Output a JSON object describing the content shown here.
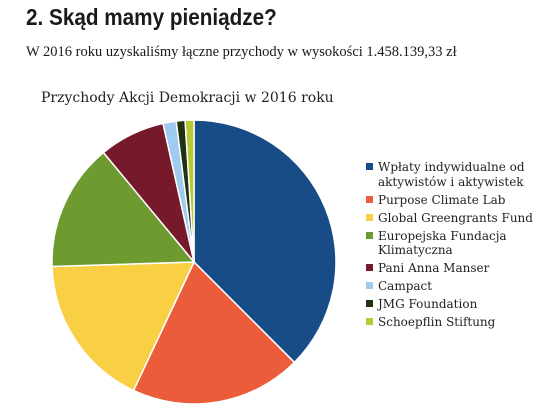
{
  "page": {
    "heading": "2. Skąd mamy pieniądze?",
    "intro": "W 2016 roku uzyskaliśmy łączne przychody w wysokości 1.458.139,33 zł"
  },
  "chart_data": {
    "type": "pie",
    "title": "Przychody Akcji Demokracji w 2016 roku",
    "legend_position": "right",
    "slices": [
      {
        "label": "Wpłaty indywidualne od aktywistów i aktywistek",
        "value": 37.5,
        "color": "#174c86"
      },
      {
        "label": "Purpose Climate Lab",
        "value": 19.5,
        "color": "#ea5c3a"
      },
      {
        "label": "Global Greengrants Fund",
        "value": 17.5,
        "color": "#f9d043"
      },
      {
        "label": "Europejska Fundacja Klimatyczna",
        "value": 14.5,
        "color": "#6d9b2f"
      },
      {
        "label": "Pani Anna Manser",
        "value": 7.5,
        "color": "#76192b"
      },
      {
        "label": "Campact",
        "value": 1.5,
        "color": "#9fcbee"
      },
      {
        "label": "JMG Foundation",
        "value": 1.0,
        "color": "#1e3312"
      },
      {
        "label": "Schoepflin Stiftung",
        "value": 1.0,
        "color": "#b7c934"
      }
    ]
  }
}
